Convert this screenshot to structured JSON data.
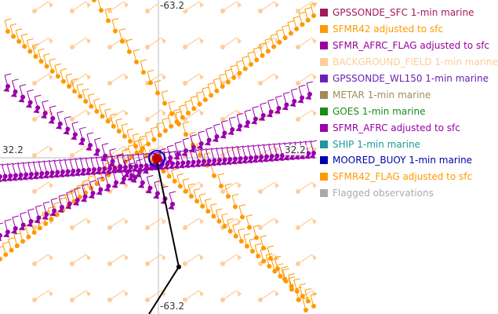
{
  "map": {
    "axis_labels": {
      "top_center": "-63.2",
      "bottom_center": "-63.2",
      "left_middle": "32.2",
      "right_middle": "32.2"
    },
    "center_marker_color": "#c00000",
    "track_line_color": "#000000"
  },
  "legend": {
    "items": [
      {
        "label": "GPSSONDE_SFC 1-min marine",
        "color": "#a31a5a"
      },
      {
        "label": "SFMR42 adjusted to sfc",
        "color": "#ff9900"
      },
      {
        "label": "SFMR_AFRC_FLAG adjusted to sfc",
        "color": "#990099"
      },
      {
        "label": "BACKGROUND_FIELD 1-min marine",
        "color": "#ffcc99"
      },
      {
        "label": "GPSSONDE_WL150 1-min marine",
        "color": "#6a1fb5"
      },
      {
        "label": "METAR 1-min marine",
        "color": "#a08c5a"
      },
      {
        "label": "GOES 1-min marine",
        "color": "#1a8c1a"
      },
      {
        "label": "SFMR_AFRC adjusted to sfc",
        "color": "#9900aa"
      },
      {
        "label": "SHIP 1-min marine",
        "color": "#1a9999"
      },
      {
        "label": "MOORED_BUOY 1-min marine",
        "color": "#0000aa"
      },
      {
        "label": "SFMR42_FLAG adjusted to sfc",
        "color": "#ff9900"
      },
      {
        "label": "Flagged observations",
        "color": "#aaaaaa"
      }
    ]
  }
}
